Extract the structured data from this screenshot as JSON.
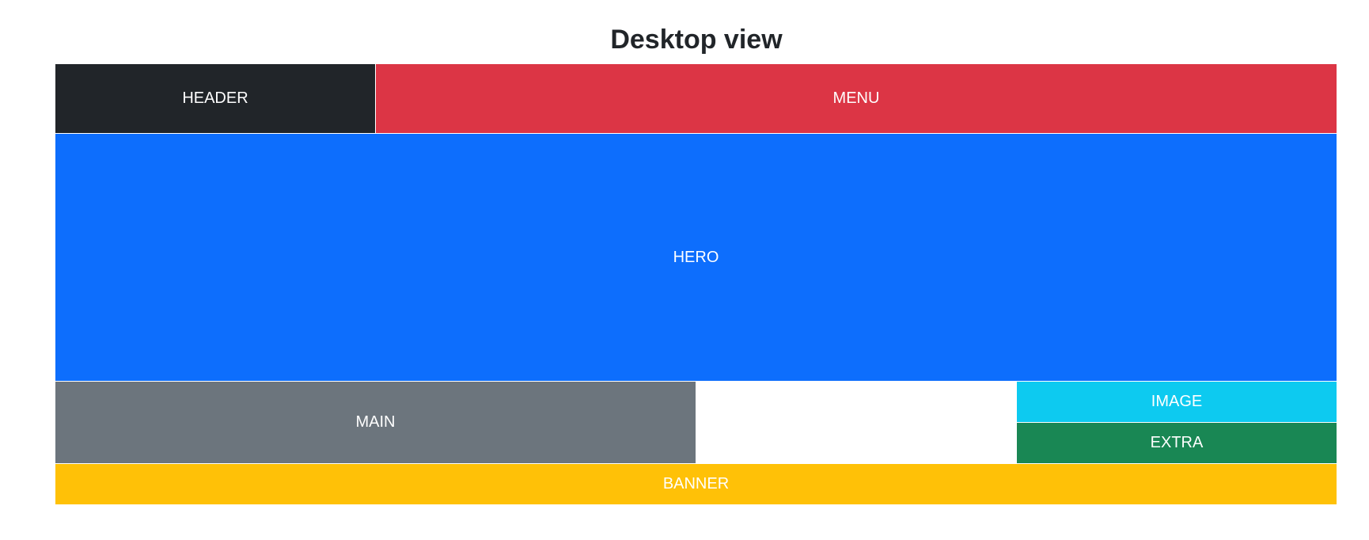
{
  "page": {
    "title": "Desktop view"
  },
  "blocks": {
    "header": {
      "label": "HEADER",
      "color": "#212529"
    },
    "menu": {
      "label": "MENU",
      "color": "#dc3545"
    },
    "hero": {
      "label": "HERO",
      "color": "#0d6efd"
    },
    "main": {
      "label": "MAIN",
      "color": "#6c757d"
    },
    "image": {
      "label": "IMAGE",
      "color": "#0dcaf0"
    },
    "extra": {
      "label": "EXTRA",
      "color": "#198754"
    },
    "banner": {
      "label": "BANNER",
      "color": "#ffc107"
    }
  }
}
